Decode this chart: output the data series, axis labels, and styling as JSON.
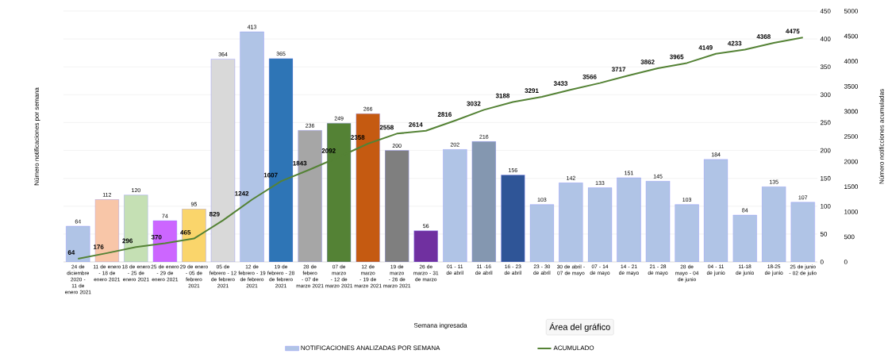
{
  "chart_data": {
    "type": "bar",
    "xlabel": "Semana ingresada",
    "ylabel": "Número notificaciones por semana",
    "y2label": "Número notificciones acumuladas",
    "categories": [
      "24 de diciembre 2020 - 11 de enero 2021",
      "11 de enero - 18 de enero 2021",
      "18 de enero - 25 de enero 2021",
      "25 de enero - 29 de enero 2021",
      "29 de enero - 05 de febrero 2021",
      "05 de febrero - 12 de febrero 2021",
      "12 de febrero - 19 de febrero 2021",
      "19 de febrero - 28 de febrero 2021",
      "28 de febero - 07 de marzo 2021",
      "07 de marzo - 12 de marzo 2021",
      "12 de marzo - 19 de marzo 2021",
      "19 de marzo - 26 de marzo 2021",
      "26 de marzo - 31 de marzo",
      "01 - 11 de abril",
      "11 -16 de abril",
      "16 - 23 de abril",
      "23 - 30 de abril",
      "30 de abril - 07 de mayo",
      "07 - 14 de mayo",
      "14 - 21 de mayo",
      "21 - 28 de mayo",
      "28 de mayo - 04 de junio",
      "04 - 11 de junio",
      "11-18 de junio",
      "18-25 de junio",
      "25 de junio - 02 de julio"
    ],
    "series": [
      {
        "name": "NOTIFICACIONES ANALIZADAS POR SEMANA",
        "color": "#b0c4e6",
        "colors": [
          "#b0c4e6",
          "#f8c6a8",
          "#c5e0b4",
          "#cc66ff",
          "#fad56b",
          "#d9d9d9",
          "#b0c4e6",
          "#2e75b6",
          "#a6a6a6",
          "#548235",
          "#c55a11",
          "#7f7f7f",
          "#7030a0",
          "#b0c4e6",
          "#8497b0",
          "#2f5597",
          "#b0c4e6",
          "#b0c4e6",
          "#b0c4e6",
          "#b0c4e6",
          "#b0c4e6",
          "#b0c4e6",
          "#b0c4e6",
          "#b0c4e6",
          "#b0c4e6",
          "#b0c4e6"
        ],
        "values": [
          64,
          112,
          120,
          74,
          95,
          364,
          413,
          365,
          236,
          249,
          266,
          200,
          56,
          202,
          216,
          156,
          103,
          142,
          133,
          151,
          145,
          103,
          184,
          84,
          135,
          107
        ]
      },
      {
        "name": "ACUMULADO",
        "type": "line",
        "axis": "y2",
        "color": "#548235",
        "values": [
          64,
          176,
          296,
          370,
          465,
          829,
          1242,
          1607,
          1843,
          2092,
          2358,
          2558,
          2614,
          2816,
          3032,
          3188,
          3291,
          3433,
          3566,
          3717,
          3862,
          3965,
          4149,
          4233,
          4368,
          4475
        ]
      }
    ],
    "ylim": [
      0,
      450
    ],
    "yticks": [
      0,
      50,
      100,
      150,
      200,
      250,
      300,
      350,
      400,
      450
    ],
    "y2lim": [
      0,
      5000
    ],
    "y2ticks": [
      0,
      500,
      1000,
      1500,
      2000,
      2500,
      3000,
      3500,
      4000,
      4500,
      5000
    ],
    "grid": "y",
    "legend": "bottom",
    "data_labels": true,
    "marker": "none",
    "annotations": [
      "Área del gráfico"
    ]
  }
}
